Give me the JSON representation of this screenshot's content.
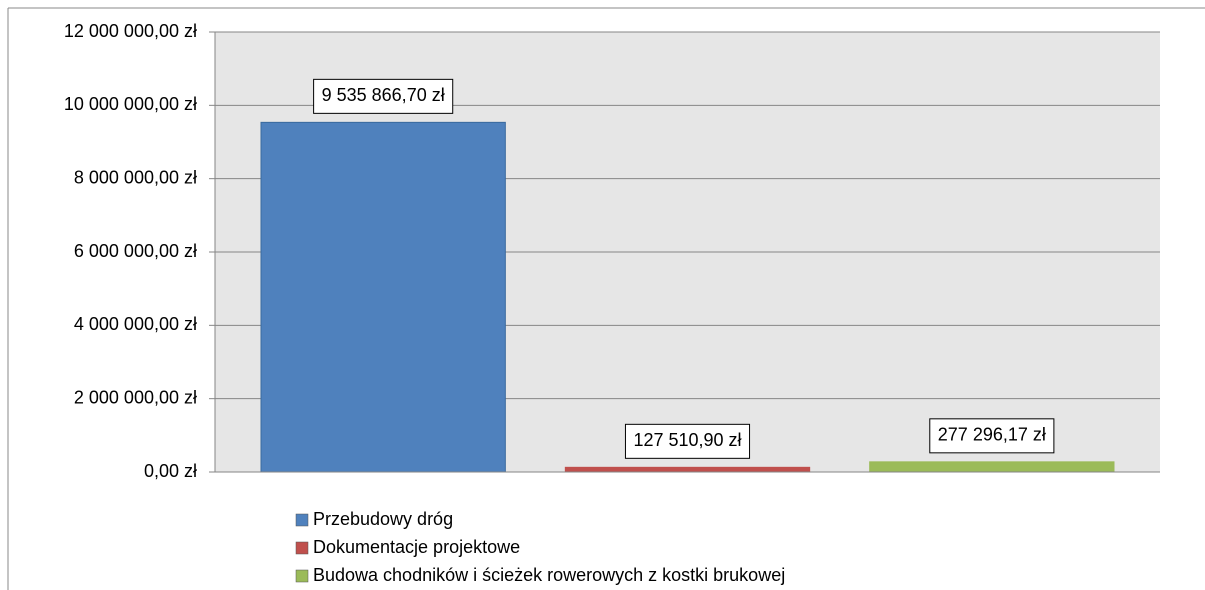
{
  "chart_data": {
    "type": "bar",
    "categories": [
      null
    ],
    "series": [
      {
        "name": "Przebudowy dróg",
        "color": "#4f81bd",
        "values": [
          9535866.7
        ],
        "value_labels": [
          "9 535 866,70 zł"
        ]
      },
      {
        "name": "Dokumentacje projektowe",
        "color": "#c0504d",
        "values": [
          127510.9
        ],
        "value_labels": [
          "127 510,90 zł"
        ]
      },
      {
        "name": "Budowa chodników i ścieżek rowerowych z kostki brukowej",
        "color": "#9bbb59",
        "values": [
          277296.17
        ],
        "value_labels": [
          "277 296,17 zł"
        ]
      }
    ],
    "ylim": [
      0,
      12000000
    ],
    "yticks": [
      {
        "value": 0,
        "label": "0,00 zł"
      },
      {
        "value": 2000000,
        "label": "2 000 000,00 zł"
      },
      {
        "value": 4000000,
        "label": "4 000 000,00 zł"
      },
      {
        "value": 6000000,
        "label": "6 000 000,00 zł"
      },
      {
        "value": 8000000,
        "label": "8 000 000,00 zł"
      },
      {
        "value": 10000000,
        "label": "10 000 000,00 zł"
      },
      {
        "value": 12000000,
        "label": "12 000 000,00 zł"
      }
    ],
    "grid": true,
    "legend": "bottom"
  }
}
